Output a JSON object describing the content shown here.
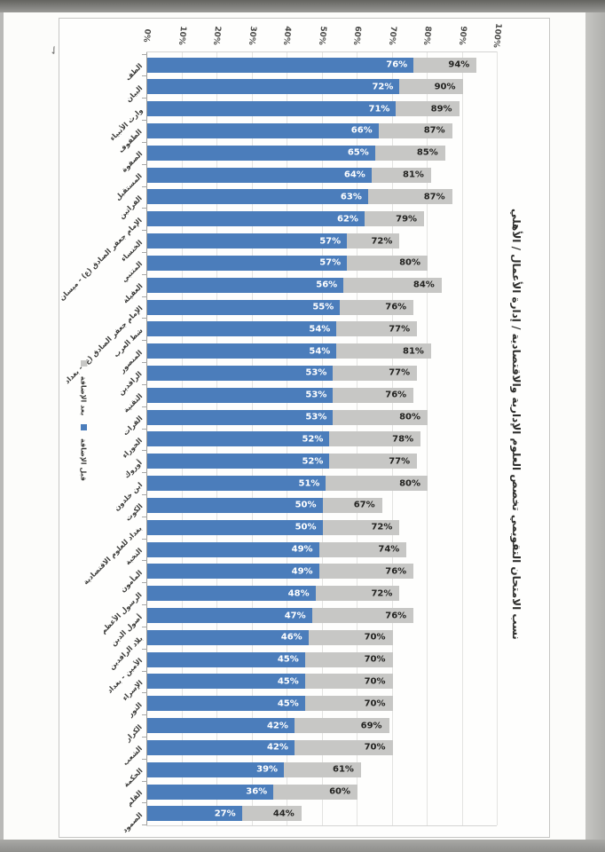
{
  "title": "نسب الامتحان التقويمي تخصص العلوم الإدارية والاقتصادية / إدارة الأعمال / الأهلي",
  "legend": {
    "items": [
      {
        "label": "بعد الإضافة",
        "color": "#c7c7c5"
      },
      {
        "label": "قبل الإضافة",
        "color": "#4b7dbb"
      }
    ]
  },
  "colors": {
    "before_bar": "#4b7dbb",
    "after_bar": "#c7c7c5",
    "before_label": "#ffffff",
    "after_label": "#232321"
  },
  "chart_data": {
    "type": "bar",
    "orientation": "horizontal",
    "title": "نسب الامتحان التقويمي تخصص العلوم الإدارية والاقتصادية / إدارة الأعمال / الأهلي",
    "value_suffix": "%",
    "axis": {
      "min": 0,
      "max": 100,
      "ticks": [
        "0%",
        "10%",
        "20%",
        "30%",
        "40%",
        "50%",
        "60%",
        "70%",
        "80%",
        "90%",
        "100%"
      ],
      "grid": true
    },
    "legend_position": "left-middle",
    "categories": [
      "الطف",
      "البيان",
      "وارث الأنبياء",
      "الطفوف",
      "الصفوة",
      "المستقبل",
      "الفراتين",
      "الإمام جعفر الصادق (ع) - ميسان",
      "الخنساء",
      "المتنبي",
      "العقيلة",
      "الإمام جعفر الصادق (ع) - بغداد",
      "شط العرب",
      "المنصور",
      "الرافدين",
      "التقنية",
      "الفرات",
      "الحوراء",
      "أوروك",
      "ابن خلدون",
      "الكوت",
      "بغداد للعلوم الاقتصادية",
      "النخبة",
      "المأمون",
      "الرسول الأعظم",
      "أصول الدين",
      "بلاد الرافدين",
      "الأمين - بغداد",
      "الإسراء",
      "النور",
      "الكرار",
      "الشعب",
      "الحكمة",
      "القلم",
      "الصمود"
    ],
    "series": [
      {
        "name": "قبل الإضافة",
        "color": "#4b7dbb",
        "values": [
          76,
          72,
          71,
          66,
          65,
          64,
          63,
          62,
          57,
          57,
          56,
          55,
          54,
          54,
          53,
          53,
          53,
          52,
          52,
          51,
          50,
          50,
          49,
          49,
          48,
          47,
          46,
          45,
          45,
          45,
          42,
          42,
          39,
          36,
          27
        ]
      },
      {
        "name": "بعد الإضافة",
        "color": "#c7c7c5",
        "values": [
          94,
          90,
          89,
          87,
          85,
          81,
          87,
          79,
          72,
          80,
          84,
          76,
          77,
          81,
          77,
          76,
          80,
          78,
          77,
          80,
          67,
          72,
          74,
          76,
          72,
          76,
          70,
          70,
          70,
          70,
          69,
          70,
          61,
          60,
          44
        ]
      }
    ]
  }
}
